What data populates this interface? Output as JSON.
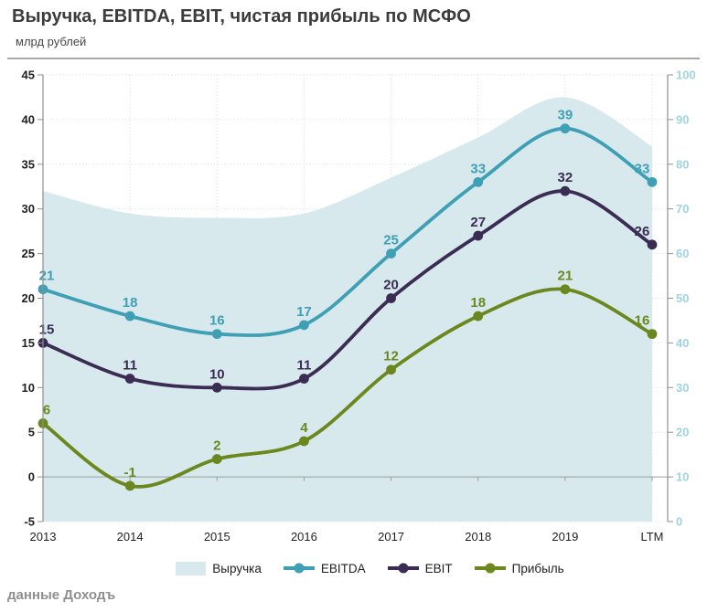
{
  "header": {
    "title": "Выручка, EBITDA, EBIT, чистая прибыль по МСФО",
    "subtitle": "млрд рублей"
  },
  "footer": {
    "source": "данные Доходъ"
  },
  "chart_data": {
    "type": "combo-area-line",
    "categories": [
      "2013",
      "2014",
      "2015",
      "2016",
      "2017",
      "2018",
      "2019",
      "LTM"
    ],
    "area": {
      "id": "revenue",
      "name": "Выручка",
      "axis": "right",
      "color": "#D7E9ED",
      "values": [
        74,
        69,
        68,
        69,
        77,
        86,
        95,
        84
      ]
    },
    "series": [
      {
        "id": "ebitda",
        "name": "EBITDA",
        "axis": "left",
        "color": "#3F9FB4",
        "values": [
          21,
          18,
          16,
          17,
          25,
          33,
          39,
          33
        ]
      },
      {
        "id": "ebit",
        "name": "EBIT",
        "axis": "left",
        "color": "#3A2C52",
        "values": [
          15,
          11,
          10,
          11,
          20,
          27,
          32,
          26
        ]
      },
      {
        "id": "profit",
        "name": "Прибыль",
        "axis": "left",
        "color": "#6B871D",
        "values": [
          6,
          -1,
          2,
          4,
          12,
          18,
          21,
          16
        ]
      }
    ],
    "left_axis": {
      "min": -5,
      "max": 45,
      "step": 5,
      "tick_labels": [
        "45",
        "40",
        "35",
        "30",
        "25",
        "20",
        "15",
        "10",
        "5",
        "0",
        "-5"
      ],
      "label_color": "#1F1F1F"
    },
    "right_axis": {
      "min": 0,
      "max": 100,
      "step": 10,
      "tick_labels": [
        "100",
        "90",
        "80",
        "70",
        "60",
        "50",
        "40",
        "30",
        "20",
        "10",
        "0"
      ],
      "label_color": "#9FD4DF"
    },
    "x_axis_label_color": "#1F1F1F",
    "grid": {
      "color": "#D9D9D9",
      "style": "dotted"
    },
    "axis_line_color": "#8F8F8F",
    "zero_line_color": "#9C9C9C",
    "legend_position": "bottom"
  },
  "legend": {
    "items": [
      {
        "label": "Выручка",
        "marker": "area",
        "color": "#D7E9ED"
      },
      {
        "label": "EBITDA",
        "marker": "line-dot",
        "color": "#3F9FB4"
      },
      {
        "label": "EBIT",
        "marker": "line-dot",
        "color": "#3A2C52"
      },
      {
        "label": "Прибыль",
        "marker": "line-dot",
        "color": "#6B871D"
      }
    ]
  }
}
